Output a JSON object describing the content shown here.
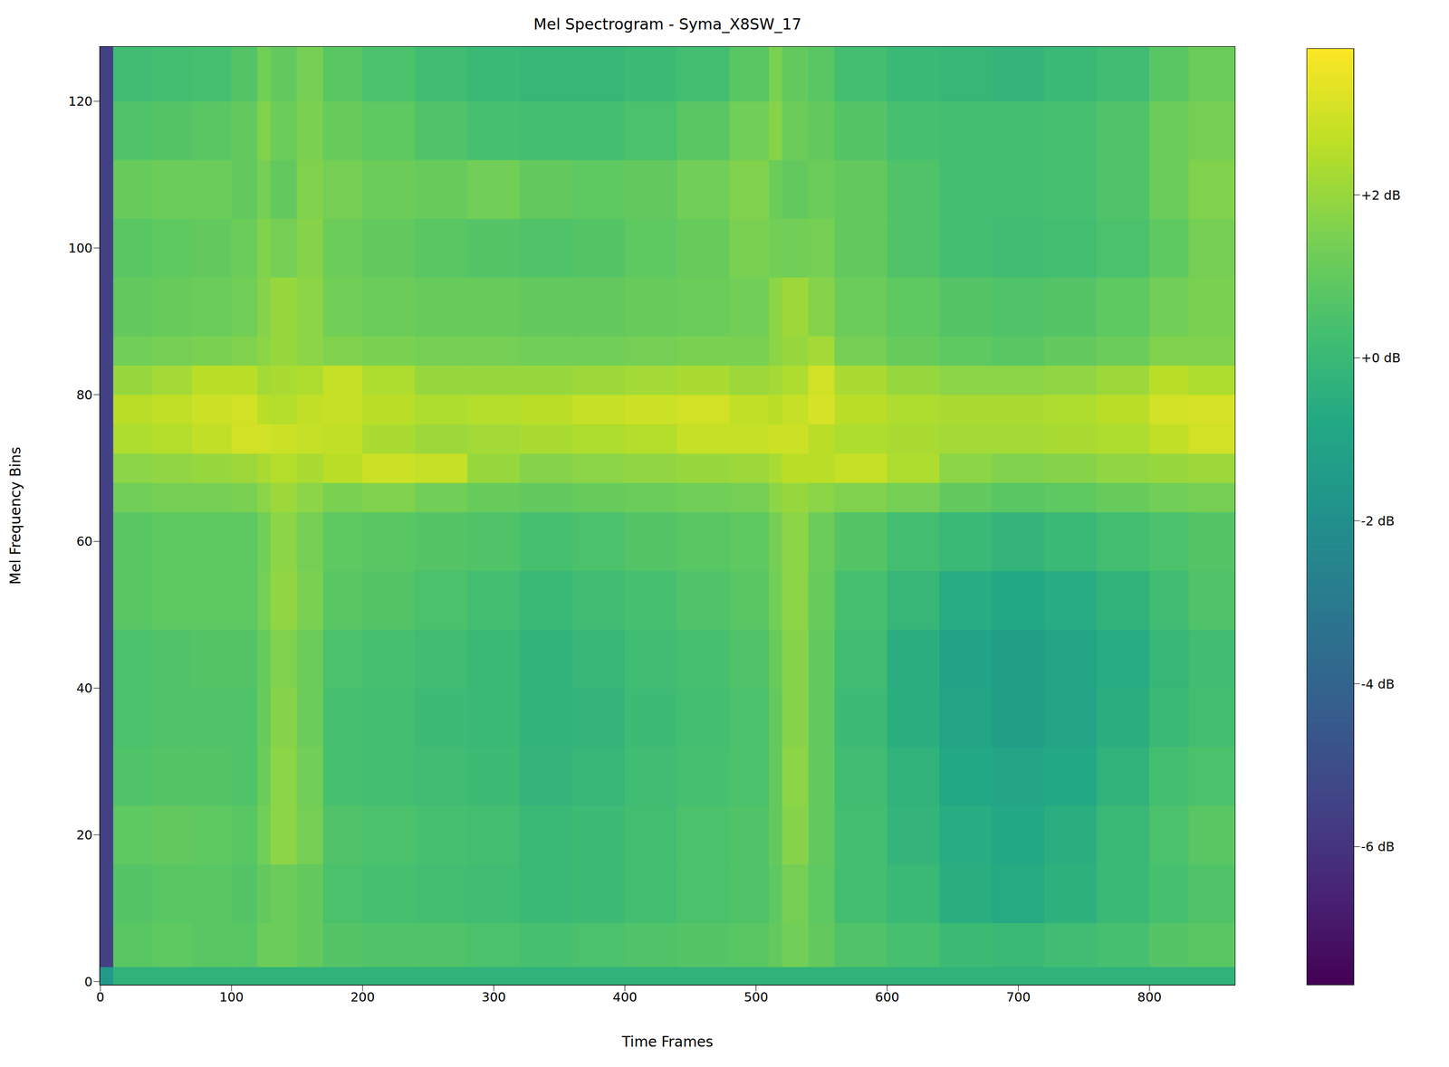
{
  "chart_data": {
    "type": "heatmap",
    "title": "Mel Spectrogram - Syma_X8SW_17",
    "x_label": "Time Frames",
    "y_label": "Mel Frequency Bins",
    "xlim": [
      -0.5,
      865.5
    ],
    "ylim": [
      -0.5,
      127.5
    ],
    "xticks": [
      0,
      100,
      200,
      300,
      400,
      500,
      600,
      700,
      800
    ],
    "yticks": [
      0,
      20,
      40,
      60,
      80,
      100,
      120
    ],
    "x_edges": [
      -0.5,
      10,
      40,
      70,
      100,
      120,
      130,
      150,
      170,
      200,
      240,
      280,
      320,
      360,
      400,
      440,
      480,
      510,
      520,
      540,
      560,
      600,
      640,
      680,
      720,
      760,
      800,
      830,
      865.5
    ],
    "y_edges": [
      -0.5,
      2,
      8,
      16,
      24,
      32,
      40,
      48,
      56,
      64,
      68,
      72,
      76,
      80,
      84,
      88,
      96,
      104,
      112,
      120,
      127.5
    ],
    "cells": [
      [
        -1.5,
        -0.3,
        -0.3,
        -0.3,
        -0.3,
        -0.3,
        -0.3,
        -0.3,
        -0.3,
        -0.3,
        -0.3,
        -0.3,
        -0.3,
        -0.3,
        -0.3,
        -0.3,
        -0.3,
        -0.3,
        -0.3,
        -0.3,
        -0.3,
        -0.3,
        -0.3,
        -0.3,
        -0.3,
        -0.3,
        -0.3,
        -0.3
      ],
      [
        -5.5,
        0.8,
        0.9,
        0.8,
        0.8,
        1.2,
        1.2,
        1.0,
        0.7,
        0.6,
        0.6,
        0.5,
        0.4,
        0.5,
        0.6,
        0.7,
        0.8,
        1.0,
        1.3,
        1.0,
        0.6,
        0.4,
        0.1,
        0.0,
        0.2,
        0.4,
        0.7,
        0.8
      ],
      [
        -5.5,
        0.7,
        0.8,
        0.8,
        0.7,
        1.0,
        1.2,
        1.0,
        0.5,
        0.4,
        0.3,
        0.2,
        0.0,
        0.1,
        0.3,
        0.5,
        0.6,
        0.9,
        1.4,
        0.9,
        0.3,
        0.0,
        -0.5,
        -0.7,
        -0.4,
        0.0,
        0.4,
        0.6
      ],
      [
        -5.5,
        0.9,
        1.0,
        0.9,
        0.8,
        1.3,
        1.8,
        1.4,
        0.6,
        0.5,
        0.4,
        0.3,
        0.0,
        0.1,
        0.3,
        0.5,
        0.6,
        1.0,
        1.7,
        1.0,
        0.3,
        -0.2,
        -0.6,
        -0.8,
        -0.5,
        0.0,
        0.5,
        0.8
      ],
      [
        -5.5,
        0.6,
        0.7,
        0.7,
        0.6,
        1.2,
        1.8,
        1.3,
        0.4,
        0.3,
        0.2,
        0.1,
        -0.2,
        -0.1,
        0.2,
        0.4,
        0.5,
        1.0,
        1.8,
        1.0,
        0.2,
        -0.3,
        -0.8,
        -1.0,
        -0.8,
        -0.3,
        0.3,
        0.5
      ],
      [
        -5.5,
        0.5,
        0.6,
        0.6,
        0.6,
        1.1,
        1.7,
        1.2,
        0.4,
        0.3,
        0.1,
        0.0,
        -0.3,
        -0.2,
        0.1,
        0.3,
        0.5,
        1.0,
        1.7,
        1.0,
        0.1,
        -0.5,
        -1.0,
        -1.3,
        -1.0,
        -0.5,
        0.0,
        0.3
      ],
      [
        -5.5,
        0.5,
        0.6,
        0.7,
        0.7,
        1.1,
        1.6,
        1.2,
        0.5,
        0.4,
        0.2,
        0.0,
        -0.3,
        -0.1,
        0.2,
        0.4,
        0.6,
        1.1,
        1.7,
        1.0,
        0.2,
        -0.5,
        -1.1,
        -1.3,
        -1.0,
        -0.6,
        -0.1,
        0.2
      ],
      [
        -5.5,
        0.8,
        0.9,
        0.9,
        0.9,
        1.4,
        1.9,
        1.5,
        0.8,
        0.7,
        0.5,
        0.3,
        0.0,
        0.2,
        0.4,
        0.6,
        0.8,
        1.3,
        1.8,
        1.1,
        0.4,
        -0.1,
        -0.6,
        -0.8,
        -0.6,
        -0.3,
        0.2,
        0.6
      ],
      [
        -5.5,
        0.8,
        0.9,
        0.9,
        0.9,
        1.3,
        1.8,
        1.4,
        0.9,
        0.8,
        0.7,
        0.6,
        0.4,
        0.5,
        0.7,
        0.8,
        0.9,
        1.4,
        1.8,
        1.2,
        0.7,
        0.3,
        0.0,
        -0.2,
        0.0,
        0.3,
        0.5,
        0.7
      ],
      [
        -5.5,
        1.3,
        1.4,
        1.4,
        1.5,
        1.8,
        2.1,
        1.8,
        1.5,
        1.6,
        1.3,
        1.1,
        1.0,
        1.1,
        1.2,
        1.3,
        1.4,
        1.8,
        2.0,
        1.8,
        1.6,
        1.4,
        1.0,
        0.8,
        0.9,
        1.1,
        1.3,
        1.4
      ],
      [
        -5.5,
        1.8,
        1.9,
        2.0,
        2.1,
        2.3,
        2.5,
        2.3,
        2.6,
        2.9,
        2.8,
        2.0,
        1.7,
        1.8,
        1.9,
        2.0,
        2.1,
        2.3,
        2.6,
        2.6,
        2.8,
        2.4,
        1.8,
        1.6,
        1.7,
        1.9,
        2.0,
        2.1
      ],
      [
        -5.5,
        2.4,
        2.5,
        2.7,
        3.0,
        3.0,
        2.9,
        2.8,
        2.7,
        2.3,
        2.1,
        2.2,
        2.3,
        2.4,
        2.5,
        2.8,
        2.8,
        2.9,
        2.9,
        2.6,
        2.4,
        2.3,
        2.2,
        2.2,
        2.3,
        2.4,
        2.7,
        3.0
      ],
      [
        -5.5,
        2.6,
        2.7,
        2.9,
        3.0,
        2.6,
        2.5,
        2.7,
        2.8,
        2.6,
        2.4,
        2.5,
        2.6,
        2.8,
        2.9,
        3.0,
        2.7,
        2.6,
        2.8,
        3.1,
        2.6,
        2.4,
        2.3,
        2.3,
        2.4,
        2.6,
        3.0,
        3.1
      ],
      [
        -5.5,
        2.0,
        2.2,
        2.6,
        2.6,
        2.2,
        2.3,
        2.4,
        2.8,
        2.4,
        2.0,
        2.0,
        2.0,
        2.1,
        2.2,
        2.3,
        2.1,
        2.2,
        2.4,
        3.0,
        2.3,
        2.0,
        1.8,
        1.8,
        1.9,
        2.1,
        2.6,
        2.4
      ],
      [
        -5.5,
        1.3,
        1.4,
        1.5,
        1.6,
        1.8,
        2.0,
        1.8,
        1.6,
        1.5,
        1.4,
        1.4,
        1.3,
        1.3,
        1.4,
        1.5,
        1.5,
        1.8,
        2.0,
        2.2,
        1.4,
        1.1,
        0.9,
        0.8,
        1.0,
        1.2,
        1.6,
        1.6
      ],
      [
        -5.5,
        1.0,
        1.1,
        1.2,
        1.3,
        1.7,
        2.0,
        1.8,
        1.3,
        1.2,
        1.1,
        1.1,
        1.0,
        1.0,
        1.1,
        1.2,
        1.3,
        1.8,
        2.1,
        1.7,
        1.2,
        0.9,
        0.7,
        0.6,
        0.7,
        0.9,
        1.3,
        1.5
      ],
      [
        -5.5,
        0.8,
        0.9,
        1.0,
        1.2,
        1.6,
        1.4,
        1.7,
        1.2,
        1.0,
        0.8,
        0.7,
        0.6,
        0.7,
        0.9,
        1.1,
        1.5,
        1.3,
        1.3,
        1.4,
        1.0,
        0.6,
        0.3,
        0.2,
        0.3,
        0.5,
        0.9,
        1.4
      ],
      [
        -5.5,
        1.1,
        1.2,
        1.2,
        1.0,
        1.4,
        1.0,
        1.6,
        1.4,
        1.2,
        1.1,
        1.3,
        1.0,
        0.9,
        1.0,
        1.3,
        1.6,
        1.2,
        1.0,
        1.2,
        1.0,
        0.6,
        0.3,
        0.3,
        0.4,
        0.6,
        1.2,
        1.6
      ],
      [
        -5.5,
        0.6,
        0.7,
        0.8,
        1.0,
        1.6,
        1.2,
        1.5,
        1.1,
        0.9,
        0.6,
        0.4,
        0.3,
        0.3,
        0.5,
        0.8,
        1.3,
        1.7,
        1.2,
        1.0,
        0.7,
        0.4,
        0.3,
        0.3,
        0.4,
        0.6,
        1.2,
        1.4
      ],
      [
        -5.5,
        0.2,
        0.3,
        0.4,
        0.7,
        1.3,
        1.0,
        1.4,
        0.8,
        0.5,
        0.2,
        0.0,
        -0.1,
        -0.1,
        0.1,
        0.3,
        0.8,
        1.5,
        1.0,
        0.8,
        0.3,
        0.0,
        -0.1,
        -0.2,
        0.0,
        0.2,
        0.8,
        1.2
      ]
    ],
    "colorbar": {
      "lim": [
        -7.7,
        3.8
      ],
      "ticks": [
        {
          "value": -6,
          "label": "-6 dB"
        },
        {
          "value": -4,
          "label": "-4 dB"
        },
        {
          "value": -2,
          "label": "-2 dB"
        },
        {
          "value": 0,
          "label": "+0 dB"
        },
        {
          "value": 2,
          "label": "+2 dB"
        }
      ]
    }
  }
}
